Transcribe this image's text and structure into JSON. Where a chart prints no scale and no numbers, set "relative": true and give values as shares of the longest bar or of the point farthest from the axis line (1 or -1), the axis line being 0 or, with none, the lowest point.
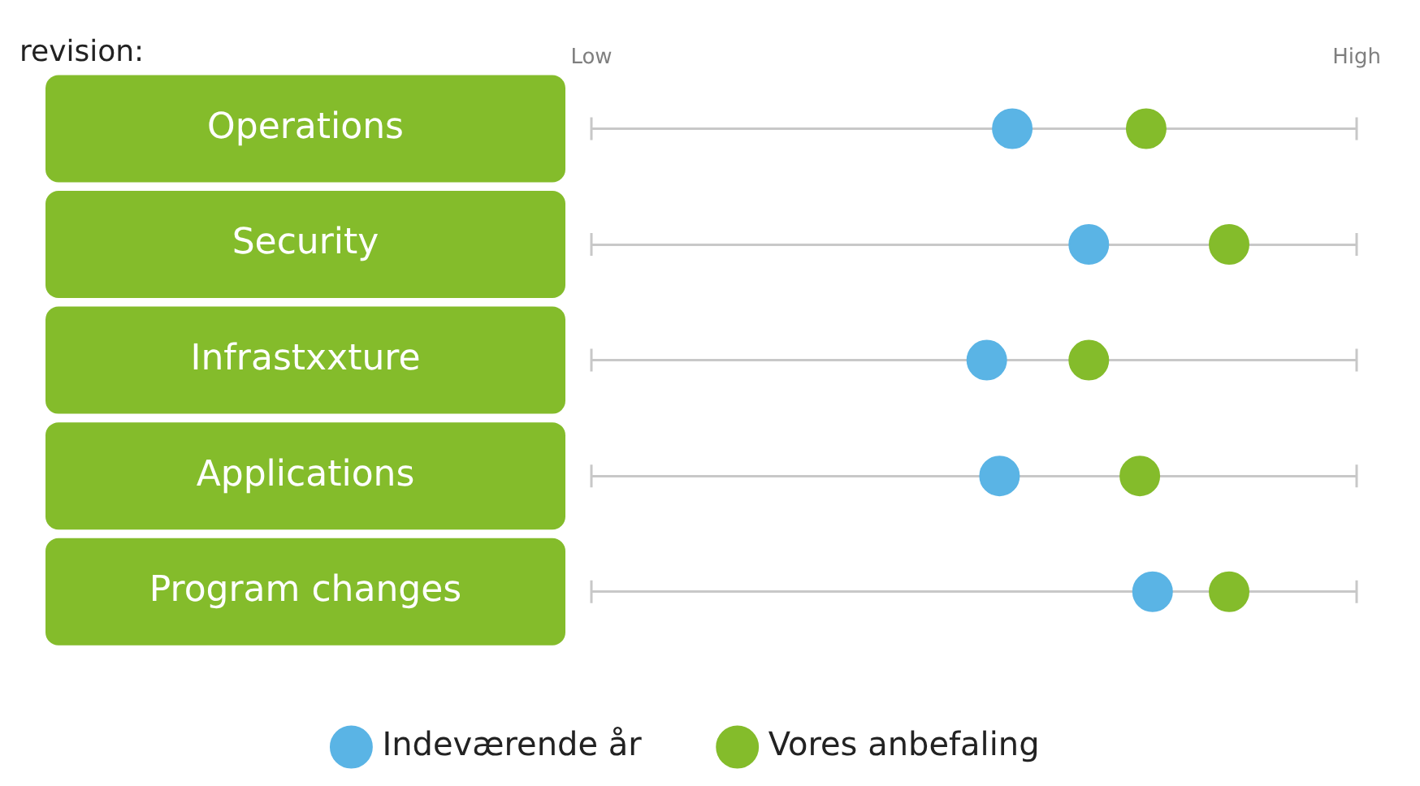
{
  "chart_data": {
    "type": "scatter",
    "title": "revision:",
    "orientation": "horizontal",
    "categories": [
      "Operations",
      "Security",
      "Infrastxxture",
      "Applications",
      "Program changes"
    ],
    "relative": true,
    "annotations": [
      "Low",
      "High"
    ],
    "grid": "y",
    "legend": "bottom",
    "marker": "circle",
    "series": [
      {
        "name": "Indeværende år",
        "color": "#5ab4e5",
        "values": [
          0.66,
          0.78,
          0.62,
          0.64,
          0.88
        ]
      },
      {
        "name": "Vores anbefaling",
        "color": "#84bc2b",
        "values": [
          0.87,
          1,
          0.78,
          0.86,
          1
        ]
      }
    ]
  }
}
